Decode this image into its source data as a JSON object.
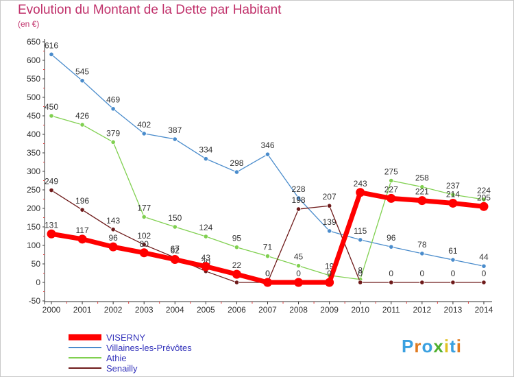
{
  "chart_data": {
    "type": "line",
    "title": "Evolution du Montant de la Dette par Habitant",
    "unit_label": "(en €)",
    "x": [
      "2000",
      "2001",
      "2002",
      "2003",
      "2004",
      "2005",
      "2006",
      "2007",
      "2008",
      "2009",
      "2010",
      "2011",
      "2012",
      "2013",
      "2014"
    ],
    "ylim": [
      -50,
      650
    ],
    "yticks": [
      -50,
      0,
      50,
      100,
      150,
      200,
      250,
      300,
      350,
      400,
      450,
      500,
      550,
      600,
      650
    ],
    "grid": false,
    "legend_position": "bottom-left",
    "series": [
      {
        "name": "Villaines-les-Prévôtes",
        "color": "#4a8ccc",
        "values": [
          616,
          545,
          469,
          402,
          387,
          334,
          298,
          346,
          228,
          139,
          115,
          96,
          78,
          61,
          44
        ],
        "labels": [
          "616",
          "545",
          "469",
          "402",
          "387",
          "334",
          "298",
          "346",
          "228",
          "139",
          "115",
          "96",
          "78",
          "61",
          "44"
        ]
      },
      {
        "name": "Athie",
        "color": "#80d050",
        "values": [
          450,
          426,
          379,
          177,
          150,
          124,
          95,
          71,
          45,
          19,
          8,
          275,
          258,
          237,
          224
        ],
        "labels": [
          "450",
          "426",
          "379",
          "177",
          "150",
          "124",
          "95",
          "71",
          "45",
          "19",
          "8",
          "275",
          "258",
          "237",
          "224"
        ]
      },
      {
        "name": "Senailly",
        "color": "#6e1a1a",
        "values": [
          249,
          196,
          143,
          102,
          67,
          30,
          0,
          0,
          198,
          207,
          0,
          0,
          0,
          0,
          0
        ],
        "labels": [
          "249",
          "196",
          "143",
          "102",
          "67",
          "30",
          "0",
          "0",
          "198",
          "207",
          "0",
          "0",
          "0",
          "0",
          "0"
        ]
      },
      {
        "name": "VISERNY",
        "color": "#ff0000",
        "values": [
          131,
          117,
          96,
          80,
          62,
          43,
          22,
          0,
          0,
          0,
          243,
          227,
          221,
          214,
          205
        ],
        "labels": [
          "131",
          "117",
          "96",
          "80",
          "62",
          "43",
          "22",
          "0",
          "0",
          "0",
          "243",
          "227",
          "221",
          "214",
          "205"
        ]
      }
    ]
  },
  "brand": {
    "letters": [
      "P",
      "r",
      "o",
      "x",
      "i",
      "t",
      "i"
    ],
    "colors": [
      "#3aa0e0",
      "#e07a20",
      "#3aa0e0",
      "#50b030",
      "#e0c020",
      "#3aa0e0",
      "#e07a20"
    ]
  }
}
